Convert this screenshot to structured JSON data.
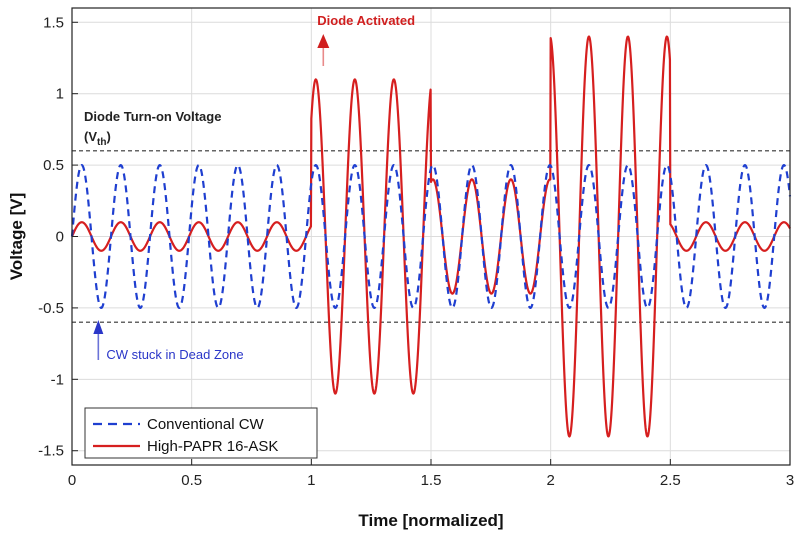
{
  "chart_data": {
    "type": "line",
    "title": "",
    "xlabel": "Time [normalized]",
    "ylabel": "Voltage [V]",
    "xlim": [
      0,
      3
    ],
    "ylim": [
      -1.6,
      1.6
    ],
    "x_ticks": [
      "0",
      "0.5",
      "1",
      "1.5",
      "2",
      "2.5",
      "3"
    ],
    "y_ticks": [
      "-1.5",
      "-1",
      "-0.5",
      "0",
      "0.5",
      "1",
      "1.5"
    ],
    "grid": true,
    "legend_position": "bottom-left",
    "threshold": 0.6,
    "series": [
      {
        "name": "Conventional CW",
        "style": "dashed",
        "color": "#1f3fd0",
        "amplitude": 0.5,
        "cycle_period": 0.163,
        "segments": [
          {
            "from": 0,
            "to": 3,
            "amplitude": 0.5
          }
        ]
      },
      {
        "name": "High-PAPR 16-ASK",
        "style": "solid",
        "color": "#d61f1f",
        "cycle_period": 0.163,
        "segments": [
          {
            "from": 0,
            "to": 1,
            "amplitude": 0.1
          },
          {
            "from": 1,
            "to": 1.5,
            "amplitude": 1.1
          },
          {
            "from": 1.5,
            "to": 2,
            "amplitude": 0.4
          },
          {
            "from": 2,
            "to": 2.5,
            "amplitude": 1.4
          },
          {
            "from": 2.5,
            "to": 3,
            "amplitude": 0.1
          }
        ]
      }
    ],
    "annotations": {
      "threshold_label": "Diode Turn-on Voltage",
      "threshold_symbol": "(V",
      "threshold_sub": "th",
      "threshold_close": ")",
      "activated": "Diode Activated",
      "dead_zone": "CW stuck in Dead Zone"
    }
  }
}
